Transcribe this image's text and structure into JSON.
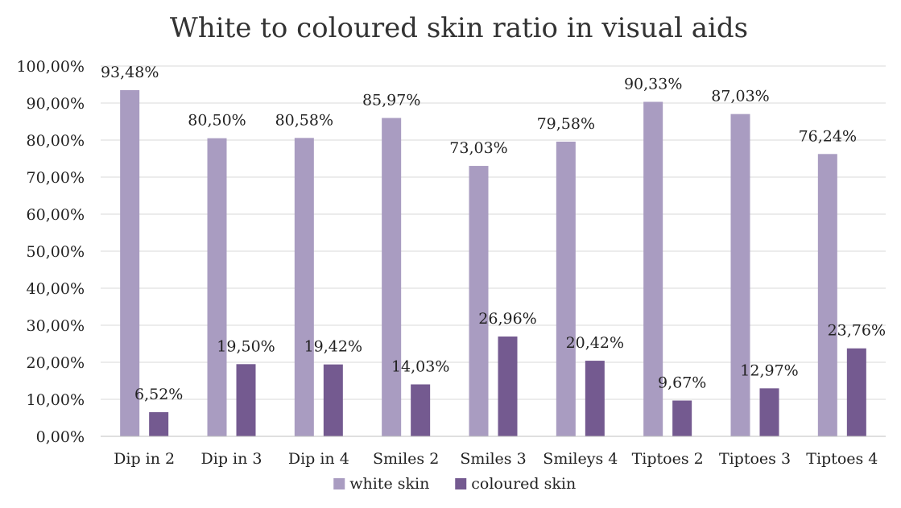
{
  "chart_data": {
    "type": "bar",
    "title": "White to coloured skin ratio in visual aids",
    "xlabel": "",
    "ylabel": "",
    "categories": [
      "Dip in 2",
      "Dip in 3",
      "Dip in 4",
      "Smiles 2",
      "Smiles 3",
      "Smileys 4",
      "Tiptoes 2",
      "Tiptoes 3",
      "Tiptoes 4"
    ],
    "series": [
      {
        "name": "white skin",
        "color": "#a99cc1",
        "values": [
          93.48,
          80.5,
          80.58,
          85.97,
          73.03,
          79.58,
          90.33,
          87.03,
          76.24
        ],
        "labels": [
          "93,48%",
          "80,50%",
          "80,58%",
          "85,97%",
          "73,03%",
          "79,58%",
          "90,33%",
          "87,03%",
          "76,24%"
        ]
      },
      {
        "name": "coloured skin",
        "color": "#745a90",
        "values": [
          6.52,
          19.5,
          19.42,
          14.03,
          26.96,
          20.42,
          9.67,
          12.97,
          23.76
        ],
        "labels": [
          "6,52%",
          "19,50%",
          "19,42%",
          "14,03%",
          "26,96%",
          "20,42%",
          "9,67%",
          "12,97%",
          "23,76%"
        ]
      }
    ],
    "ylim": [
      0,
      100
    ],
    "yticks": [
      0,
      10,
      20,
      30,
      40,
      50,
      60,
      70,
      80,
      90,
      100
    ],
    "ytick_labels": [
      "0,00%",
      "10,00%",
      "20,00%",
      "30,00%",
      "40,00%",
      "50,00%",
      "60,00%",
      "70,00%",
      "80,00%",
      "90,00%",
      "100,00%"
    ],
    "grid": true,
    "legend": "bottom"
  }
}
